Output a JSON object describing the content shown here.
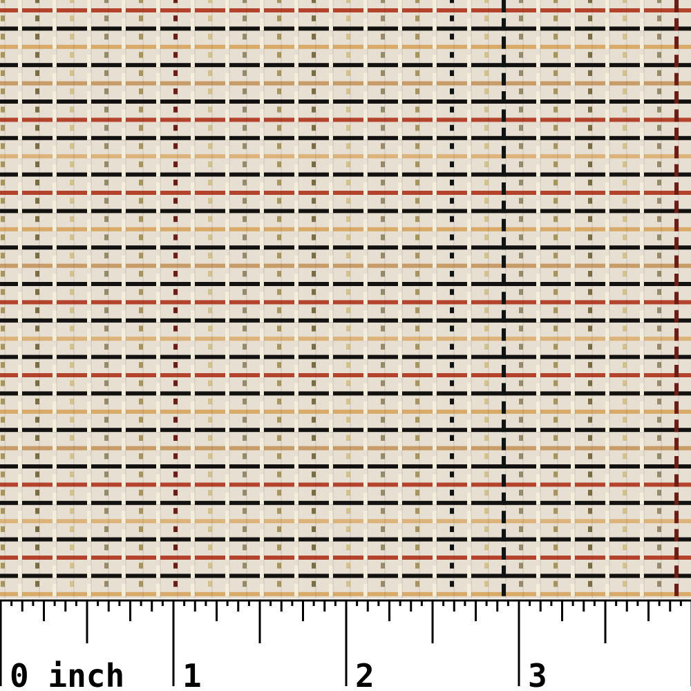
{
  "ruler": {
    "labels": [
      "0 inch",
      "1",
      "2",
      "3"
    ]
  }
}
